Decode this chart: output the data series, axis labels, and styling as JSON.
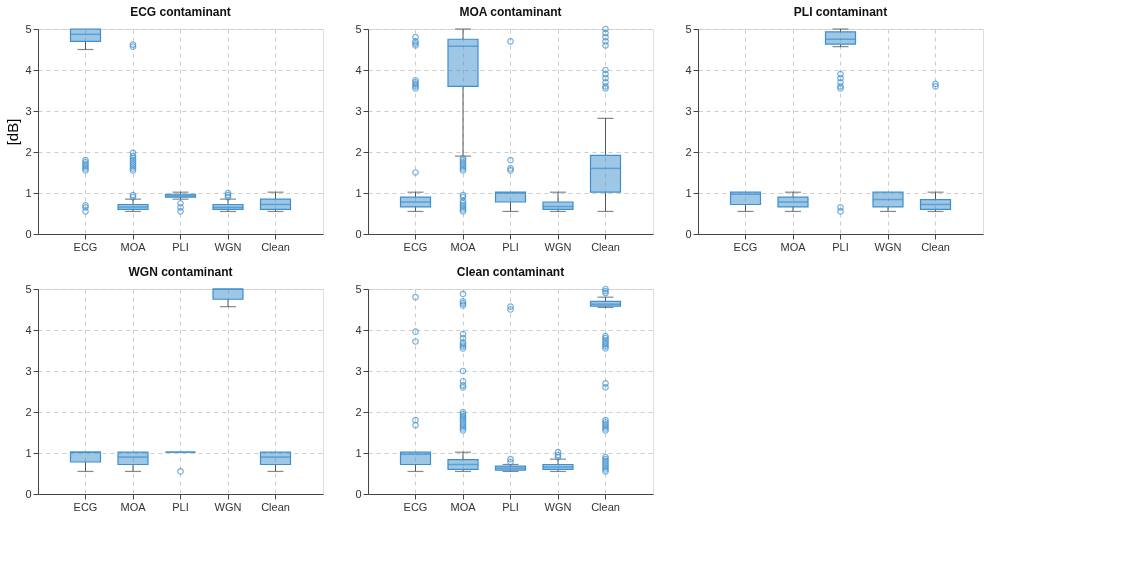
{
  "chart_data": [
    {
      "type": "box",
      "title": "ECG contaminant",
      "ylabel": "[dB]",
      "categories": [
        "ECG",
        "MOA",
        "PLI",
        "WGN",
        "Clean"
      ],
      "ylim": [
        0,
        5
      ],
      "yticks": [
        0,
        1,
        2,
        3,
        4,
        5
      ],
      "grid": true,
      "series": [
        {
          "color": "#3d8fce",
          "boxes": [
            {
              "low": 4.5,
              "q1": 4.7,
              "median": 4.87,
              "q3": 5.0,
              "high": 5.0,
              "outliers": [
                0.55,
                0.65,
                0.7,
                1.55,
                1.6,
                1.65,
                1.7,
                1.75,
                1.8
              ]
            },
            {
              "low": 0.55,
              "q1": 0.6,
              "median": 0.66,
              "q3": 0.72,
              "high": 0.85,
              "outliers": [
                0.9,
                0.95,
                1.55,
                1.6,
                1.65,
                1.7,
                1.75,
                1.8,
                1.85,
                1.9,
                1.98,
                4.57,
                4.62
              ]
            },
            {
              "low": 0.85,
              "q1": 0.9,
              "median": 0.93,
              "q3": 0.97,
              "high": 1.02,
              "outliers": [
                0.55,
                0.65,
                0.75
              ]
            },
            {
              "low": 0.55,
              "q1": 0.6,
              "median": 0.65,
              "q3": 0.72,
              "high": 0.85,
              "outliers": [
                0.9,
                0.95,
                1.0
              ]
            },
            {
              "low": 0.55,
              "q1": 0.6,
              "median": 0.72,
              "q3": 0.85,
              "high": 1.02
            }
          ]
        }
      ]
    },
    {
      "type": "box",
      "title": "MOA contaminant",
      "categories": [
        "ECG",
        "MOA",
        "PLI",
        "WGN",
        "Clean"
      ],
      "ylim": [
        0,
        5
      ],
      "yticks": [
        0,
        1,
        2,
        3,
        4,
        5
      ],
      "grid": true,
      "series": [
        {
          "color": "#3d8fce",
          "boxes": [
            {
              "low": 0.55,
              "q1": 0.66,
              "median": 0.78,
              "q3": 0.9,
              "high": 1.02,
              "outliers": [
                1.5,
                3.55,
                3.6,
                3.65,
                3.7,
                3.75,
                4.6,
                4.65,
                4.7,
                4.8
              ]
            },
            {
              "low": 1.9,
              "q1": 3.6,
              "median": 4.58,
              "q3": 4.75,
              "high": 5.0,
              "outliers": [
                0.55,
                0.6,
                0.65,
                0.7,
                0.75,
                0.8,
                0.9,
                0.95,
                1.55,
                1.6,
                1.65,
                1.7,
                1.75,
                1.8,
                1.85
              ]
            },
            {
              "low": 0.55,
              "q1": 0.78,
              "median": 1.0,
              "q3": 1.02,
              "high": 1.02,
              "outliers": [
                1.55,
                1.6,
                1.8,
                4.7
              ]
            },
            {
              "low": 0.55,
              "q1": 0.6,
              "median": 0.67,
              "q3": 0.78,
              "high": 1.02
            },
            {
              "low": 0.55,
              "q1": 1.02,
              "median": 1.6,
              "q3": 1.92,
              "high": 2.82,
              "outliers": [
                3.55,
                3.6,
                3.7,
                3.8,
                3.9,
                4.0,
                4.6,
                4.7,
                4.8,
                4.9,
                5.0
              ]
            }
          ]
        }
      ]
    },
    {
      "type": "box",
      "title": "PLI contaminant",
      "categories": [
        "ECG",
        "MOA",
        "PLI",
        "WGN",
        "Clean"
      ],
      "ylim": [
        0,
        5
      ],
      "yticks": [
        0,
        1,
        2,
        3,
        4,
        5
      ],
      "grid": true,
      "series": [
        {
          "color": "#3d8fce",
          "boxes": [
            {
              "low": 0.55,
              "q1": 0.72,
              "median": 0.97,
              "q3": 1.02,
              "high": 1.02
            },
            {
              "low": 0.55,
              "q1": 0.66,
              "median": 0.78,
              "q3": 0.9,
              "high": 1.02
            },
            {
              "low": 4.57,
              "q1": 4.63,
              "median": 4.75,
              "q3": 4.93,
              "high": 5.0,
              "outliers": [
                0.55,
                0.65,
                3.55,
                3.6,
                3.7,
                3.8,
                3.9
              ]
            },
            {
              "low": 0.55,
              "q1": 0.66,
              "median": 0.84,
              "q3": 1.02,
              "high": 1.02
            },
            {
              "low": 0.55,
              "q1": 0.6,
              "median": 0.72,
              "q3": 0.84,
              "high": 1.02,
              "outliers": [
                3.6,
                3.66
              ]
            }
          ]
        }
      ]
    },
    {
      "type": "box",
      "title": "WGN contaminant",
      "categories": [
        "ECG",
        "MOA",
        "PLI",
        "WGN",
        "Clean"
      ],
      "ylim": [
        0,
        5
      ],
      "yticks": [
        0,
        1,
        2,
        3,
        4,
        5
      ],
      "grid": true,
      "series": [
        {
          "color": "#3d8fce",
          "boxes": [
            {
              "low": 0.55,
              "q1": 0.78,
              "median": 1.02,
              "q3": 1.02,
              "high": 1.02
            },
            {
              "low": 0.55,
              "q1": 0.72,
              "median": 0.9,
              "q3": 1.02,
              "high": 1.02
            },
            {
              "low": 1.02,
              "q1": 1.02,
              "median": 1.02,
              "q3": 1.02,
              "high": 1.02,
              "outliers": [
                0.55
              ]
            },
            {
              "low": 4.57,
              "q1": 4.75,
              "median": 5.0,
              "q3": 5.0,
              "high": 5.0
            },
            {
              "low": 0.55,
              "q1": 0.72,
              "median": 0.9,
              "q3": 1.02,
              "high": 1.02
            }
          ]
        }
      ]
    },
    {
      "type": "box",
      "title": "Clean contaminant",
      "categories": [
        "ECG",
        "MOA",
        "PLI",
        "WGN",
        "Clean"
      ],
      "ylim": [
        0,
        5
      ],
      "yticks": [
        0,
        1,
        2,
        3,
        4,
        5
      ],
      "grid": true,
      "series": [
        {
          "color": "#3d8fce",
          "boxes": [
            {
              "low": 0.55,
              "q1": 0.72,
              "median": 0.97,
              "q3": 1.02,
              "high": 1.02,
              "outliers": [
                1.68,
                1.8,
                3.72,
                3.96,
                4.8
              ]
            },
            {
              "low": 0.55,
              "q1": 0.6,
              "median": 0.72,
              "q3": 0.84,
              "high": 1.02,
              "outliers": [
                1.55,
                1.6,
                1.65,
                1.7,
                1.75,
                1.8,
                1.85,
                1.9,
                1.95,
                2.0,
                2.6,
                2.65,
                2.75,
                3.0,
                3.55,
                3.6,
                3.65,
                3.7,
                3.8,
                3.9,
                4.6,
                4.65,
                4.7,
                4.88
              ]
            },
            {
              "low": 0.55,
              "q1": 0.58,
              "median": 0.63,
              "q3": 0.68,
              "high": 0.72,
              "outliers": [
                0.78,
                0.85,
                4.5,
                4.57
              ]
            },
            {
              "low": 0.55,
              "q1": 0.6,
              "median": 0.66,
              "q3": 0.72,
              "high": 0.85,
              "outliers": [
                0.9,
                0.95,
                1.02
              ]
            },
            {
              "low": 4.55,
              "q1": 4.58,
              "median": 4.63,
              "q3": 4.7,
              "high": 4.8,
              "outliers": [
                0.55,
                0.6,
                0.65,
                0.7,
                0.75,
                0.8,
                0.85,
                0.9,
                1.55,
                1.6,
                1.65,
                1.7,
                1.75,
                1.8,
                2.6,
                2.7,
                3.55,
                3.6,
                3.65,
                3.7,
                3.75,
                3.8,
                3.85,
                4.9,
                4.95,
                5.0
              ]
            }
          ]
        }
      ]
    }
  ]
}
